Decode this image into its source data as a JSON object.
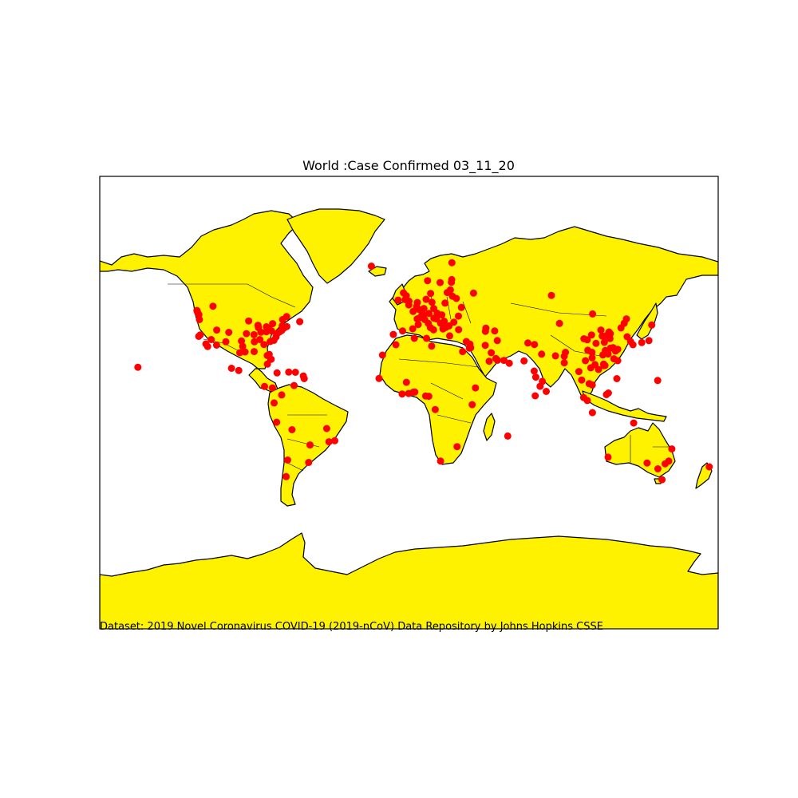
{
  "title": "World :Case Confirmed 03_11_20",
  "caption": "Dataset: 2019 Novel Coronavirus COVID-19 (2019-nCoV) Data Repository by Johns Hopkins CSSE",
  "colors": {
    "land": "#fff200",
    "ocean": "#ffffff",
    "coastline": "#000000",
    "marker": "#ff0000"
  },
  "map": {
    "projection": "mercator",
    "lon_range": [
      -180,
      180
    ],
    "lat_range": [
      -80,
      80
    ],
    "marker_shape": "filled circle",
    "features": [
      "coastlines",
      "country borders",
      "US state borders"
    ]
  },
  "cases": [
    {
      "lon": -123.0,
      "lat": 48.5
    },
    {
      "lon": -122.3,
      "lat": 47.6
    },
    {
      "lon": -122.0,
      "lat": 45.5
    },
    {
      "lon": -121.5,
      "lat": 38.5
    },
    {
      "lon": -122.4,
      "lat": 37.8
    },
    {
      "lon": -118.2,
      "lat": 34.0
    },
    {
      "lon": -117.2,
      "lat": 32.7
    },
    {
      "lon": -112.0,
      "lat": 33.4
    },
    {
      "lon": -115.1,
      "lat": 36.2
    },
    {
      "lon": -111.9,
      "lat": 40.8
    },
    {
      "lon": -104.9,
      "lat": 39.7
    },
    {
      "lon": -106.6,
      "lat": 35.1
    },
    {
      "lon": -97.5,
      "lat": 35.5
    },
    {
      "lon": -96.8,
      "lat": 32.8
    },
    {
      "lon": -95.4,
      "lat": 29.8
    },
    {
      "lon": -98.5,
      "lat": 29.4
    },
    {
      "lon": -94.6,
      "lat": 39.1
    },
    {
      "lon": -93.3,
      "lat": 44.9
    },
    {
      "lon": -90.2,
      "lat": 38.6
    },
    {
      "lon": -87.6,
      "lat": 41.9
    },
    {
      "lon": -86.2,
      "lat": 39.8
    },
    {
      "lon": -84.4,
      "lat": 33.7
    },
    {
      "lon": -90.1,
      "lat": 30.0
    },
    {
      "lon": -86.8,
      "lat": 36.2
    },
    {
      "lon": -83.0,
      "lat": 40.0
    },
    {
      "lon": -83.0,
      "lat": 42.3
    },
    {
      "lon": -80.0,
      "lat": 40.4
    },
    {
      "lon": -80.8,
      "lat": 35.2
    },
    {
      "lon": -77.0,
      "lat": 38.9
    },
    {
      "lon": -75.2,
      "lat": 40.0
    },
    {
      "lon": -74.0,
      "lat": 40.7
    },
    {
      "lon": -71.1,
      "lat": 42.4
    },
    {
      "lon": -72.7,
      "lat": 41.8
    },
    {
      "lon": -73.8,
      "lat": 42.7
    },
    {
      "lon": -76.6,
      "lat": 39.3
    },
    {
      "lon": -77.4,
      "lat": 37.5
    },
    {
      "lon": -81.7,
      "lat": 41.5
    },
    {
      "lon": -81.4,
      "lat": 28.5
    },
    {
      "lon": -80.2,
      "lat": 25.8
    },
    {
      "lon": -82.5,
      "lat": 27.9
    },
    {
      "lon": -79.4,
      "lat": 43.7
    },
    {
      "lon": -73.6,
      "lat": 45.5
    },
    {
      "lon": -114.1,
      "lat": 51.0
    },
    {
      "lon": -71.2,
      "lat": 46.8
    },
    {
      "lon": -63.6,
      "lat": 44.6
    },
    {
      "lon": -123.4,
      "lat": 49.3
    },
    {
      "lon": -87.9,
      "lat": 43.0
    },
    {
      "lon": -90.0,
      "lat": 35.1
    },
    {
      "lon": -78.6,
      "lat": 35.8
    },
    {
      "lon": -157.8,
      "lat": 21.3
    },
    {
      "lon": -99.1,
      "lat": 19.4
    },
    {
      "lon": -103.3,
      "lat": 20.7
    },
    {
      "lon": -84.1,
      "lat": 9.9
    },
    {
      "lon": -79.5,
      "lat": 9.0
    },
    {
      "lon": -82.4,
      "lat": 23.1
    },
    {
      "lon": -76.8,
      "lat": 18.0
    },
    {
      "lon": -70.0,
      "lat": 18.5
    },
    {
      "lon": -66.1,
      "lat": 18.4
    },
    {
      "lon": -61.5,
      "lat": 16.2
    },
    {
      "lon": -61.0,
      "lat": 14.6
    },
    {
      "lon": -74.1,
      "lat": 4.7
    },
    {
      "lon": -78.5,
      "lat": -0.2
    },
    {
      "lon": -77.0,
      "lat": -12.0
    },
    {
      "lon": -66.9,
      "lat": 10.5
    },
    {
      "lon": -68.1,
      "lat": -16.5
    },
    {
      "lon": -70.6,
      "lat": -33.4
    },
    {
      "lon": -58.4,
      "lat": -34.6
    },
    {
      "lon": -57.6,
      "lat": -25.3
    },
    {
      "lon": -47.9,
      "lat": -15.8
    },
    {
      "lon": -46.6,
      "lat": -23.5
    },
    {
      "lon": -43.2,
      "lat": -22.9
    },
    {
      "lon": -71.5,
      "lat": -41.5
    },
    {
      "lon": -21.9,
      "lat": 64.1
    },
    {
      "lon": -6.3,
      "lat": 53.3
    },
    {
      "lon": -3.7,
      "lat": 40.4
    },
    {
      "lon": 2.2,
      "lat": 41.4
    },
    {
      "lon": -9.1,
      "lat": 38.7
    },
    {
      "lon": -0.1,
      "lat": 51.5
    },
    {
      "lon": -3.2,
      "lat": 55.9
    },
    {
      "lon": -2.2,
      "lat": 53.5
    },
    {
      "lon": 2.4,
      "lat": 48.9
    },
    {
      "lon": 4.8,
      "lat": 45.8
    },
    {
      "lon": 5.4,
      "lat": 43.3
    },
    {
      "lon": 4.4,
      "lat": 50.8
    },
    {
      "lon": 4.9,
      "lat": 52.4
    },
    {
      "lon": 6.1,
      "lat": 49.6
    },
    {
      "lon": 8.5,
      "lat": 47.4
    },
    {
      "lon": 6.1,
      "lat": 46.2
    },
    {
      "lon": 9.2,
      "lat": 45.5
    },
    {
      "lon": 12.5,
      "lat": 41.9
    },
    {
      "lon": 11.3,
      "lat": 43.8
    },
    {
      "lon": 14.3,
      "lat": 40.9
    },
    {
      "lon": 13.4,
      "lat": 52.5
    },
    {
      "lon": 11.6,
      "lat": 48.1
    },
    {
      "lon": 8.7,
      "lat": 50.1
    },
    {
      "lon": 10.0,
      "lat": 53.6
    },
    {
      "lon": 16.4,
      "lat": 48.2
    },
    {
      "lon": 14.4,
      "lat": 50.1
    },
    {
      "lon": 19.1,
      "lat": 47.5
    },
    {
      "lon": 21.0,
      "lat": 52.2
    },
    {
      "lon": 12.6,
      "lat": 55.7
    },
    {
      "lon": 10.8,
      "lat": 59.9
    },
    {
      "lon": 18.1,
      "lat": 59.3
    },
    {
      "lon": 24.9,
      "lat": 60.2
    },
    {
      "lon": 24.1,
      "lat": 56.9
    },
    {
      "lon": 25.3,
      "lat": 54.7
    },
    {
      "lon": 24.7,
      "lat": 59.4
    },
    {
      "lon": 26.1,
      "lat": 44.4
    },
    {
      "lon": 23.3,
      "lat": 42.7
    },
    {
      "lon": 20.5,
      "lat": 44.8
    },
    {
      "lon": 16.0,
      "lat": 45.8
    },
    {
      "lon": 14.5,
      "lat": 46.1
    },
    {
      "lon": 18.4,
      "lat": 43.9
    },
    {
      "lon": 21.4,
      "lat": 42.0
    },
    {
      "lon": 19.8,
      "lat": 41.3
    },
    {
      "lon": 23.7,
      "lat": 38.0
    },
    {
      "lon": 28.9,
      "lat": 41.0
    },
    {
      "lon": 28.8,
      "lat": 47.0
    },
    {
      "lon": 30.5,
      "lat": 50.5
    },
    {
      "lon": 27.6,
      "lat": 53.9
    },
    {
      "lon": 37.6,
      "lat": 55.8
    },
    {
      "lon": 33.4,
      "lat": 35.2
    },
    {
      "lon": 35.5,
      "lat": 33.9
    },
    {
      "lon": 35.2,
      "lat": 31.8
    },
    {
      "lon": 35.9,
      "lat": 32.0
    },
    {
      "lon": 31.2,
      "lat": 30.0
    },
    {
      "lon": 44.8,
      "lat": 41.7
    },
    {
      "lon": 44.5,
      "lat": 40.2
    },
    {
      "lon": 49.9,
      "lat": 40.4
    },
    {
      "lon": 51.4,
      "lat": 35.7
    },
    {
      "lon": 44.4,
      "lat": 33.3
    },
    {
      "lon": 47.9,
      "lat": 29.4
    },
    {
      "lon": 50.6,
      "lat": 26.2
    },
    {
      "lon": 51.5,
      "lat": 25.3
    },
    {
      "lon": 55.3,
      "lat": 25.2
    },
    {
      "lon": 58.4,
      "lat": 23.6
    },
    {
      "lon": 46.7,
      "lat": 24.7
    },
    {
      "lon": 69.2,
      "lat": 34.5
    },
    {
      "lon": 73.0,
      "lat": 33.7
    },
    {
      "lon": 67.0,
      "lat": 24.9
    },
    {
      "lon": 77.2,
      "lat": 28.6
    },
    {
      "lon": 72.9,
      "lat": 19.1
    },
    {
      "lon": 77.6,
      "lat": 13.0
    },
    {
      "lon": 76.3,
      "lat": 10.0
    },
    {
      "lon": 73.5,
      "lat": 4.2
    },
    {
      "lon": 79.9,
      "lat": 6.9
    },
    {
      "lon": 85.3,
      "lat": 27.7
    },
    {
      "lon": 90.4,
      "lat": 23.8
    },
    {
      "lon": 90.4,
      "lat": 27.5
    },
    {
      "lon": 73.8,
      "lat": 15.5
    },
    {
      "lon": 57.5,
      "lat": -20.2
    },
    {
      "lon": 100.5,
      "lat": 13.8
    },
    {
      "lon": 98.9,
      "lat": 18.8
    },
    {
      "lon": 104.9,
      "lat": 11.6
    },
    {
      "lon": 105.8,
      "lat": 21.0
    },
    {
      "lon": 106.7,
      "lat": 10.8
    },
    {
      "lon": 101.7,
      "lat": 3.1
    },
    {
      "lon": 103.8,
      "lat": 1.3
    },
    {
      "lon": 106.8,
      "lat": -6.2
    },
    {
      "lon": 114.9,
      "lat": 4.9
    },
    {
      "lon": 116.1,
      "lat": 5.9
    },
    {
      "lon": 121.0,
      "lat": 14.6
    },
    {
      "lon": 116.4,
      "lat": 39.9
    },
    {
      "lon": 117.2,
      "lat": 39.1
    },
    {
      "lon": 121.5,
      "lat": 31.2
    },
    {
      "lon": 120.2,
      "lat": 30.3
    },
    {
      "lon": 118.8,
      "lat": 32.1
    },
    {
      "lon": 114.3,
      "lat": 30.6
    },
    {
      "lon": 113.3,
      "lat": 23.1
    },
    {
      "lon": 114.1,
      "lat": 22.3
    },
    {
      "lon": 113.5,
      "lat": 22.2
    },
    {
      "lon": 121.5,
      "lat": 25.0
    },
    {
      "lon": 104.1,
      "lat": 30.7
    },
    {
      "lon": 106.5,
      "lat": 29.6
    },
    {
      "lon": 108.9,
      "lat": 34.3
    },
    {
      "lon": 103.8,
      "lat": 36.1
    },
    {
      "lon": 101.8,
      "lat": 36.6
    },
    {
      "lon": 106.3,
      "lat": 38.5
    },
    {
      "lon": 87.6,
      "lat": 43.8
    },
    {
      "lon": 91.1,
      "lat": 29.6
    },
    {
      "lon": 102.7,
      "lat": 25.0
    },
    {
      "lon": 106.6,
      "lat": 26.6
    },
    {
      "lon": 108.3,
      "lat": 22.8
    },
    {
      "lon": 110.3,
      "lat": 20.0
    },
    {
      "lon": 112.9,
      "lat": 28.2
    },
    {
      "lon": 115.9,
      "lat": 28.7
    },
    {
      "lon": 119.3,
      "lat": 26.1
    },
    {
      "lon": 117.3,
      "lat": 31.8
    },
    {
      "lon": 113.7,
      "lat": 34.8
    },
    {
      "lon": 117.0,
      "lat": 36.7
    },
    {
      "lon": 114.5,
      "lat": 38.0
    },
    {
      "lon": 112.5,
      "lat": 37.9
    },
    {
      "lon": 111.7,
      "lat": 40.8
    },
    {
      "lon": 123.4,
      "lat": 41.8
    },
    {
      "lon": 125.3,
      "lat": 43.9
    },
    {
      "lon": 126.6,
      "lat": 45.8
    },
    {
      "lon": 127.0,
      "lat": 37.6
    },
    {
      "lon": 129.0,
      "lat": 35.2
    },
    {
      "lon": 139.7,
      "lat": 35.7
    },
    {
      "lon": 135.5,
      "lat": 34.7
    },
    {
      "lon": 141.3,
      "lat": 43.1
    },
    {
      "lon": 130.4,
      "lat": 33.6
    },
    {
      "lon": 106.9,
      "lat": 47.9
    },
    {
      "lon": 82.9,
      "lat": 55.0
    },
    {
      "lon": 144.8,
      "lat": 13.5
    },
    {
      "lon": 115.9,
      "lat": -31.9
    },
    {
      "lon": 138.6,
      "lat": -34.9
    },
    {
      "lon": 144.9,
      "lat": -37.8
    },
    {
      "lon": 151.2,
      "lat": -33.9
    },
    {
      "lon": 153.0,
      "lat": -27.5
    },
    {
      "lon": 149.1,
      "lat": -35.3
    },
    {
      "lon": 147.3,
      "lat": -42.9
    },
    {
      "lon": 130.8,
      "lat": -12.5
    },
    {
      "lon": 174.8,
      "lat": -36.8
    },
    {
      "lon": -15.4,
      "lat": 28.1
    },
    {
      "lon": -17.4,
      "lat": 14.7
    },
    {
      "lon": -7.6,
      "lat": 33.6
    },
    {
      "lon": 3.1,
      "lat": 36.8
    },
    {
      "lon": 10.2,
      "lat": 36.8
    },
    {
      "lon": 3.4,
      "lat": 6.5
    },
    {
      "lon": -0.2,
      "lat": 5.6
    },
    {
      "lon": 2.4,
      "lat": 6.4
    },
    {
      "lon": 9.7,
      "lat": 4.1
    },
    {
      "lon": 11.5,
      "lat": 3.9
    },
    {
      "lon": 38.7,
      "lat": 9.0
    },
    {
      "lon": 36.8,
      "lat": -1.3
    },
    {
      "lon": 15.3,
      "lat": -4.3
    },
    {
      "lon": 28.0,
      "lat": -26.2
    },
    {
      "lon": 18.4,
      "lat": -33.9
    },
    {
      "lon": -4.0,
      "lat": 5.3
    },
    {
      "lon": -1.5,
      "lat": 12.4
    },
    {
      "lon": 13.2,
      "lat": 32.9
    },
    {
      "lon": 0.0,
      "lat": 52.9
    },
    {
      "lon": -1.6,
      "lat": 54.9
    },
    {
      "lon": 7.3,
      "lat": 47.0
    },
    {
      "lon": 22.3,
      "lat": 56.0
    },
    {
      "lon": 25.0,
      "lat": 65.0
    }
  ]
}
